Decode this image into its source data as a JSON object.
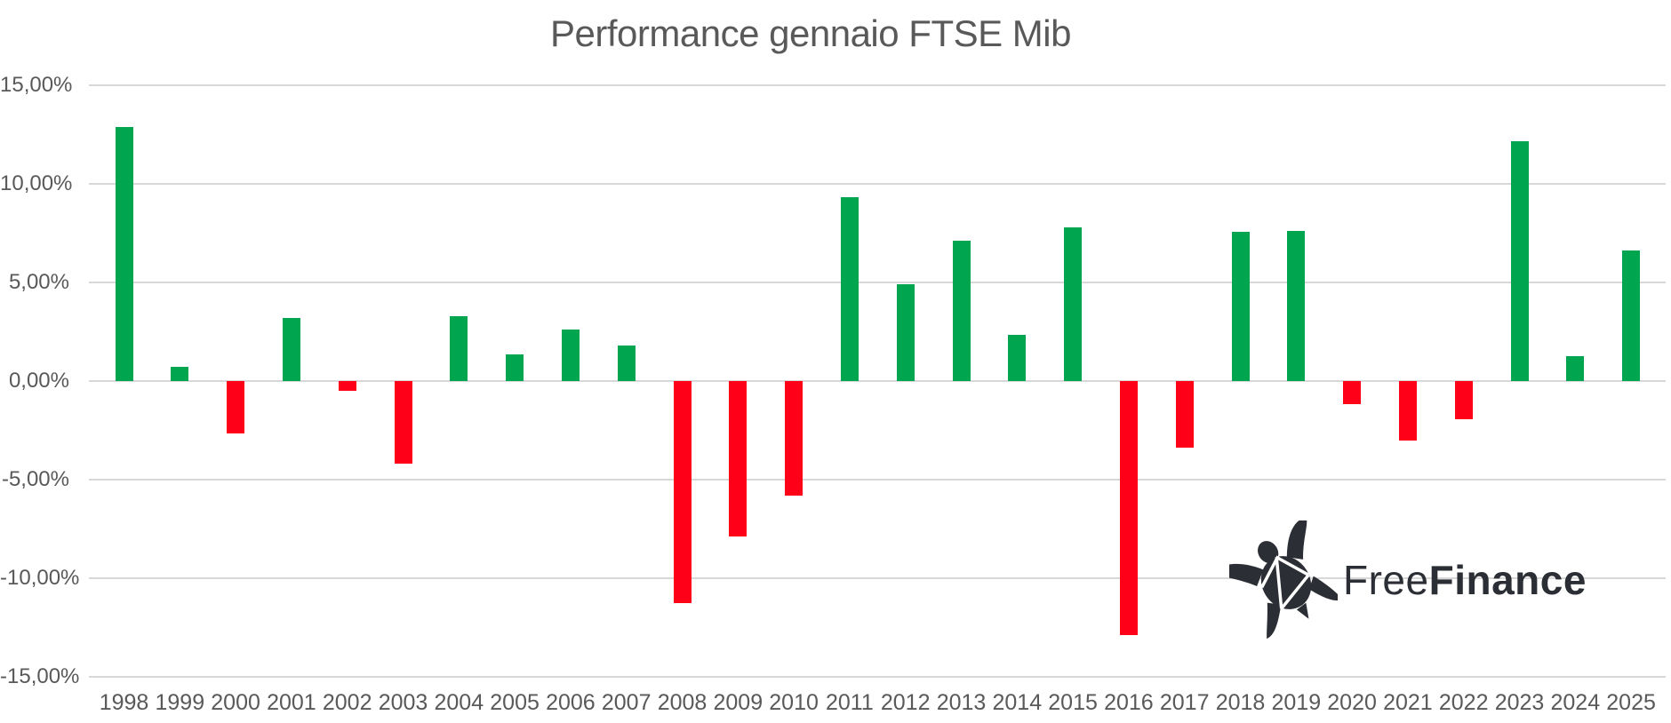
{
  "title": "Performance gennaio FTSE Mib",
  "chart_data": {
    "type": "bar",
    "title": "Performance gennaio FTSE Mib",
    "xlabel": "",
    "ylabel": "",
    "ylim": [
      -15,
      15
    ],
    "grid": true,
    "legend": "none",
    "y_ticks": [
      "15,00%",
      "10,00%",
      "5,00%",
      "0,00%",
      "-5,00%",
      "-10,00%",
      "-15,00%"
    ],
    "y_tick_values": [
      15,
      10,
      5,
      0,
      -5,
      -10,
      -15
    ],
    "categories": [
      "1998",
      "1999",
      "2000",
      "2001",
      "2002",
      "2003",
      "2004",
      "2005",
      "2006",
      "2007",
      "2008",
      "2009",
      "2010",
      "2011",
      "2012",
      "2013",
      "2014",
      "2015",
      "2016",
      "2017",
      "2018",
      "2019",
      "2020",
      "2021",
      "2022",
      "2023",
      "2024",
      "2025"
    ],
    "values": [
      12.88,
      0.7,
      -2.66,
      3.2,
      -0.48,
      -4.18,
      3.27,
      1.37,
      2.63,
      1.82,
      -11.25,
      -7.87,
      -5.82,
      9.31,
      4.89,
      7.13,
      2.34,
      7.81,
      -12.87,
      -3.38,
      7.57,
      7.63,
      -1.16,
      -3.0,
      -1.95,
      12.17,
      1.27,
      6.63
    ],
    "positive_color": "#00a64f",
    "negative_color": "#ff0019",
    "gridline_color": "#d8d8d8",
    "axis_text_color": "#595959"
  },
  "logo": {
    "free": "Free",
    "finance": "Finance",
    "color": "#2b2e34"
  }
}
